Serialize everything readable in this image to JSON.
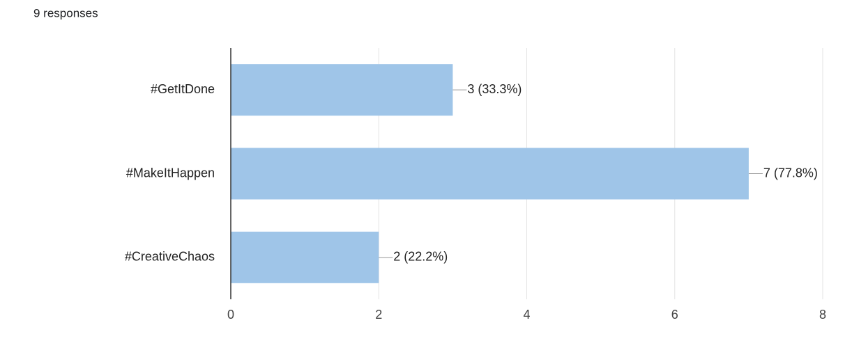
{
  "chart_data": {
    "type": "bar",
    "orientation": "horizontal",
    "subtitle": "9 responses",
    "categories": [
      "#GetItDone",
      "#MakeItHappen",
      "#CreativeChaos"
    ],
    "values": [
      3,
      7,
      2
    ],
    "value_labels": [
      "3 (33.3%)",
      "7 (77.8%)",
      "2 (22.2%)"
    ],
    "color": "#9fc5e8",
    "xlim": [
      0,
      8
    ],
    "xticks": [
      0,
      2,
      4,
      6,
      8
    ],
    "grid": true
  }
}
